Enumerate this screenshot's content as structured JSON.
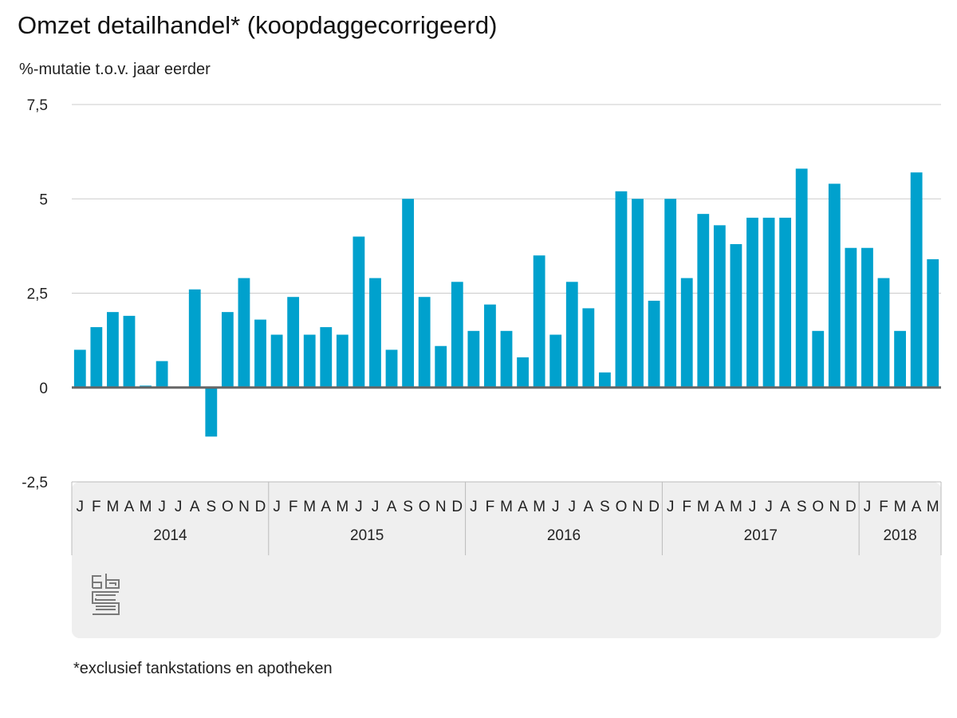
{
  "title": "Omzet detailhandel* (koopdaggecorrigeerd)",
  "subtitle": "%-mutatie t.o.v. jaar eerder",
  "footnote": "*exclusief tankstations en apotheken",
  "logo": "cbs-logo",
  "colors": {
    "bar": "#00a1cd",
    "axis_band": "#efefef",
    "grid": "#cccccc",
    "zero_line": "#666666"
  },
  "chart_data": {
    "type": "bar",
    "title": "Omzet detailhandel* (koopdaggecorrigeerd)",
    "ylabel": "%-mutatie t.o.v. jaar eerder",
    "xlabel": "",
    "ylim": [
      -2.5,
      7.5
    ],
    "yticks": [
      -2.5,
      0,
      2.5,
      5,
      7.5
    ],
    "ytick_labels": [
      "-2,5",
      "0",
      "2,5",
      "5",
      "7,5"
    ],
    "grid": true,
    "years": [
      {
        "label": "2014",
        "months": 12
      },
      {
        "label": "2015",
        "months": 12
      },
      {
        "label": "2016",
        "months": 12
      },
      {
        "label": "2017",
        "months": 12
      },
      {
        "label": "2018",
        "months": 5
      }
    ],
    "categories": [
      "J",
      "F",
      "M",
      "A",
      "M",
      "J",
      "J",
      "A",
      "S",
      "O",
      "N",
      "D",
      "J",
      "F",
      "M",
      "A",
      "M",
      "J",
      "J",
      "A",
      "S",
      "O",
      "N",
      "D",
      "J",
      "F",
      "M",
      "A",
      "M",
      "J",
      "J",
      "A",
      "S",
      "O",
      "N",
      "D",
      "J",
      "F",
      "M",
      "A",
      "M",
      "J",
      "J",
      "A",
      "S",
      "O",
      "N",
      "D",
      "J",
      "F",
      "M",
      "A",
      "M"
    ],
    "values": [
      1.0,
      1.6,
      2.0,
      1.9,
      0.05,
      0.7,
      0.0,
      2.6,
      -1.3,
      2.0,
      2.9,
      1.8,
      1.4,
      2.4,
      1.4,
      1.6,
      1.4,
      4.0,
      2.9,
      1.0,
      5.0,
      2.4,
      1.1,
      2.8,
      1.5,
      2.2,
      1.5,
      0.8,
      3.5,
      1.4,
      2.8,
      2.1,
      0.4,
      5.2,
      5.0,
      2.3,
      5.0,
      2.9,
      4.6,
      4.3,
      3.8,
      4.5,
      4.5,
      4.5,
      5.8,
      1.5,
      5.4,
      3.7,
      3.7,
      2.9,
      1.5,
      5.7,
      3.4
    ]
  }
}
